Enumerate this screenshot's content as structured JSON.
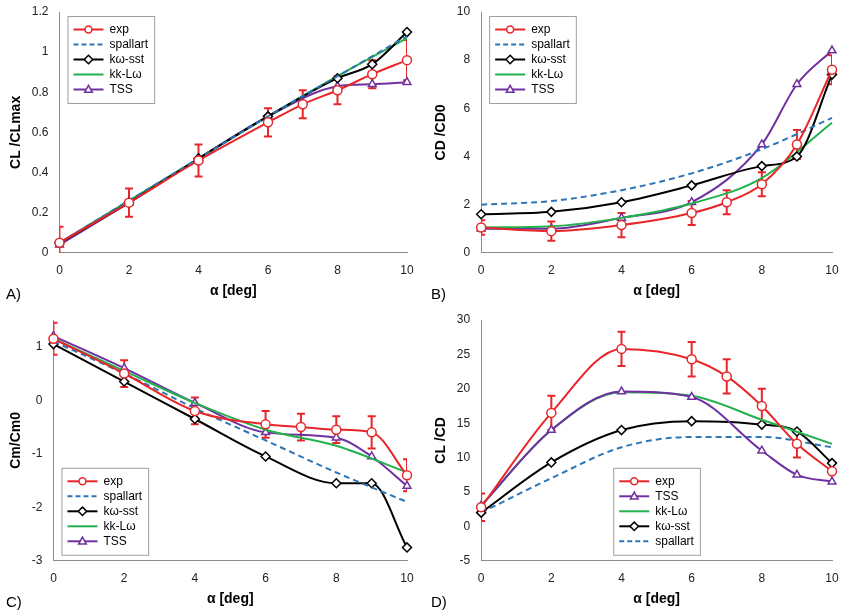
{
  "chart_data": [
    {
      "type": "line",
      "panel_label": "A)",
      "x_label": "α [deg]",
      "y_label": "CL /CLmax",
      "x": [
        0,
        2,
        4,
        6,
        7,
        8,
        9,
        10
      ],
      "xlim": [
        0,
        10
      ],
      "xticks": [
        0,
        2,
        4,
        6,
        8,
        10
      ],
      "ylim": [
        0,
        1.2
      ],
      "yticks": [
        0,
        0.2,
        0.4,
        0.6,
        0.8,
        1,
        1.2
      ],
      "grid": false,
      "legend": "upper left",
      "series": [
        {
          "name": "exp",
          "color": "#e8262a",
          "marker": "circle",
          "line_style": "solid",
          "values": [
            0.05,
            0.25,
            0.46,
            0.65,
            0.74,
            0.81,
            0.89,
            0.96
          ],
          "errors": [
            0.08,
            0.07,
            0.08,
            0.07,
            0.07,
            0.07,
            0.07,
            0.1
          ]
        },
        {
          "name": "spallart",
          "color": "#2e75b6",
          "marker": "none",
          "line_style": "dashed",
          "values": [
            0.05,
            0.26,
            0.47,
            0.68,
            null,
            0.88,
            null,
            1.08
          ]
        },
        {
          "name": "kω-sst",
          "color": "#000000",
          "marker": "diamond",
          "line_style": "solid",
          "values": [
            0.05,
            0.25,
            0.47,
            0.68,
            null,
            0.87,
            0.94,
            1.1
          ]
        },
        {
          "name": "kk-Lω",
          "color": "#22b14c",
          "marker": "none",
          "line_style": "solid",
          "values": [
            0.05,
            0.26,
            0.47,
            0.68,
            null,
            0.88,
            null,
            1.07
          ]
        },
        {
          "name": "TSS",
          "color": "#7030a0",
          "marker": "triangle",
          "line_style": "solid",
          "values": [
            0.04,
            0.25,
            0.47,
            0.68,
            null,
            0.83,
            0.84,
            0.85
          ]
        }
      ]
    },
    {
      "type": "line",
      "panel_label": "B)",
      "x_label": "α [deg]",
      "y_label": "CD /CD0",
      "x": [
        0,
        2,
        4,
        6,
        7,
        8,
        9,
        10
      ],
      "xlim": [
        0,
        10
      ],
      "xticks": [
        0,
        2,
        4,
        6,
        8,
        10
      ],
      "ylim": [
        0,
        10
      ],
      "yticks": [
        0,
        2,
        4,
        6,
        8,
        10
      ],
      "grid": false,
      "legend": "upper left",
      "series": [
        {
          "name": "exp",
          "color": "#e8262a",
          "marker": "circle",
          "line_style": "solid",
          "values": [
            1.05,
            0.9,
            1.15,
            1.65,
            2.1,
            2.85,
            4.5,
            7.6
          ],
          "errors": [
            0.3,
            0.4,
            0.5,
            0.5,
            0.5,
            0.5,
            0.6,
            0.6
          ]
        },
        {
          "name": "spallart",
          "color": "#2e75b6",
          "marker": "none",
          "line_style": "dashed",
          "values": [
            2.0,
            2.15,
            2.6,
            3.3,
            null,
            4.3,
            null,
            5.6
          ]
        },
        {
          "name": "kω-sst",
          "color": "#000000",
          "marker": "diamond",
          "line_style": "solid",
          "values": [
            1.6,
            1.7,
            2.1,
            2.8,
            null,
            3.6,
            4.0,
            7.4
          ]
        },
        {
          "name": "kk-Lω",
          "color": "#22b14c",
          "marker": "none",
          "line_style": "solid",
          "values": [
            1.05,
            1.1,
            1.45,
            2.05,
            null,
            3.1,
            null,
            5.4
          ]
        },
        {
          "name": "TSS",
          "color": "#7030a0",
          "marker": "triangle",
          "line_style": "solid",
          "values": [
            1.0,
            1.0,
            1.45,
            2.1,
            null,
            4.5,
            7.0,
            8.4
          ]
        }
      ]
    },
    {
      "type": "line",
      "panel_label": "C)",
      "x_label": "α [deg]",
      "y_label": "Cm/Cm0",
      "x": [
        0,
        2,
        4,
        6,
        7,
        8,
        9,
        10
      ],
      "xlim": [
        0,
        10
      ],
      "xticks": [
        0,
        2,
        4,
        6,
        8,
        10
      ],
      "ylim": [
        -3,
        1.5
      ],
      "yticks": [
        -3,
        -2,
        -1,
        0,
        1
      ],
      "grid": false,
      "legend": "lower left",
      "series": [
        {
          "name": "exp",
          "color": "#e8262a",
          "marker": "circle",
          "line_style": "solid",
          "values": [
            1.15,
            0.5,
            -0.2,
            -0.45,
            -0.5,
            -0.55,
            -0.6,
            -1.4
          ],
          "errors": [
            0.3,
            0.25,
            0.25,
            0.25,
            0.25,
            0.25,
            0.3,
            0.3
          ]
        },
        {
          "name": "spallart",
          "color": "#2e75b6",
          "marker": "none",
          "line_style": "dashed",
          "values": [
            1.1,
            0.5,
            -0.15,
            -0.75,
            null,
            -1.35,
            null,
            -1.9
          ]
        },
        {
          "name": "kω-sst",
          "color": "#000000",
          "marker": "diamond",
          "line_style": "solid",
          "values": [
            1.05,
            0.35,
            -0.35,
            -1.05,
            null,
            -1.55,
            -1.55,
            -2.75
          ]
        },
        {
          "name": "kk-Lω",
          "color": "#22b14c",
          "marker": "none",
          "line_style": "solid",
          "values": [
            1.15,
            0.55,
            -0.05,
            -0.55,
            null,
            -0.85,
            null,
            -1.35
          ]
        },
        {
          "name": "TSS",
          "color": "#7030a0",
          "marker": "triangle",
          "line_style": "solid",
          "values": [
            1.2,
            0.6,
            -0.05,
            -0.6,
            null,
            -0.7,
            -1.05,
            -1.6
          ]
        }
      ]
    },
    {
      "type": "line",
      "panel_label": "D)",
      "x_label": "α [deg]",
      "y_label": "CL /CD",
      "x": [
        0,
        2,
        4,
        6,
        7,
        8,
        9,
        10
      ],
      "xlim": [
        0,
        10
      ],
      "xticks": [
        0,
        2,
        4,
        6,
        8,
        10
      ],
      "ylim": [
        -5,
        30
      ],
      "yticks": [
        -5,
        0,
        5,
        10,
        15,
        20,
        25,
        30
      ],
      "grid": false,
      "legend": "lower center",
      "series": [
        {
          "name": "exp",
          "color": "#e8262a",
          "marker": "circle",
          "line_style": "solid",
          "values": [
            2.8,
            16.5,
            25.8,
            24.3,
            21.8,
            17.5,
            12.0,
            8.0
          ],
          "errors": [
            2.0,
            2.5,
            2.5,
            2.5,
            2.5,
            2.5,
            2.0,
            1.5
          ]
        },
        {
          "name": "TSS",
          "color": "#7030a0",
          "marker": "triangle",
          "line_style": "solid",
          "values": [
            3.0,
            14.0,
            19.6,
            18.8,
            null,
            11.0,
            7.5,
            6.5
          ]
        },
        {
          "name": "kk-Lω",
          "color": "#22b14c",
          "marker": "none",
          "line_style": "solid",
          "values": [
            3.0,
            14.0,
            19.5,
            19.0,
            null,
            15.5,
            null,
            12.0
          ]
        },
        {
          "name": "kω-sst",
          "color": "#000000",
          "marker": "diamond",
          "line_style": "solid",
          "values": [
            2.0,
            9.3,
            14.0,
            15.3,
            null,
            14.8,
            13.8,
            9.2
          ]
        },
        {
          "name": "spallart",
          "color": "#2e75b6",
          "marker": "none",
          "line_style": "dashed",
          "values": [
            2.0,
            7.0,
            11.5,
            13.0,
            null,
            13.0,
            null,
            11.5
          ]
        }
      ]
    }
  ]
}
